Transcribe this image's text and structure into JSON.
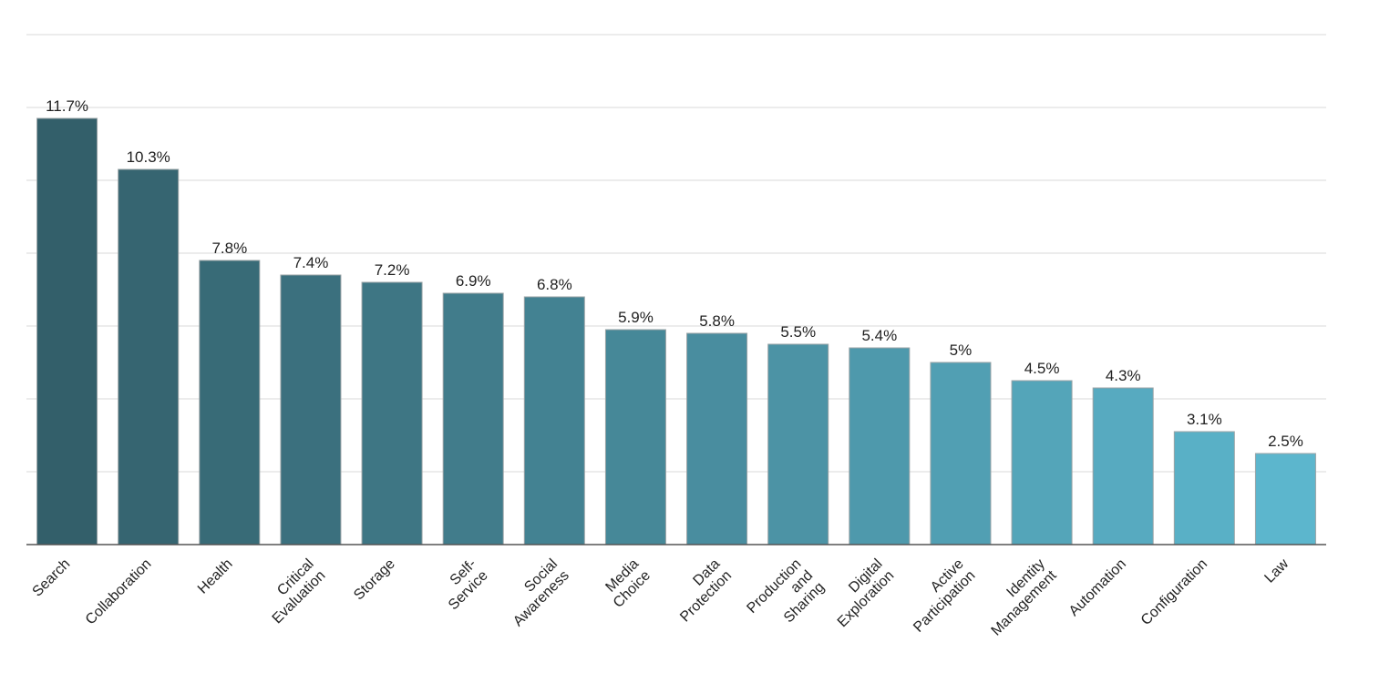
{
  "chart_data": {
    "type": "bar",
    "title": "",
    "xlabel": "",
    "ylabel": "",
    "ylim": [
      0,
      14
    ],
    "grid": true,
    "legend": "none",
    "categories": [
      [
        "Search"
      ],
      [
        "Collaboration"
      ],
      [
        "Health"
      ],
      [
        "Critical",
        "Evaluation"
      ],
      [
        "Storage"
      ],
      [
        "Self-",
        "Service"
      ],
      [
        "Social",
        "Awareness"
      ],
      [
        "Media",
        "Choice"
      ],
      [
        "Data",
        "Protection"
      ],
      [
        "Production",
        "and",
        "Sharing"
      ],
      [
        "Digital",
        "Exploration"
      ],
      [
        "Active",
        "Participation"
      ],
      [
        "Identity",
        "Management"
      ],
      [
        "Automation"
      ],
      [
        "Configuration"
      ],
      [
        "Law"
      ]
    ],
    "values": [
      11.7,
      10.3,
      7.8,
      7.4,
      7.2,
      6.9,
      6.8,
      5.9,
      5.8,
      5.5,
      5.4,
      5,
      4.5,
      4.3,
      3.1,
      2.5
    ],
    "value_labels": [
      "11.7%",
      "10.3%",
      "7.8%",
      "7.4%",
      "7.2%",
      "6.9%",
      "6.8%",
      "5.9%",
      "5.8%",
      "5.5%",
      "5.4%",
      "5%",
      "4.5%",
      "4.3%",
      "3.1%",
      "2.5%"
    ],
    "colors": {
      "bar_start": "#335f6a",
      "bar_end": "#5cb6cd",
      "grid": "#d9d9d9",
      "axis": "#555555"
    }
  }
}
